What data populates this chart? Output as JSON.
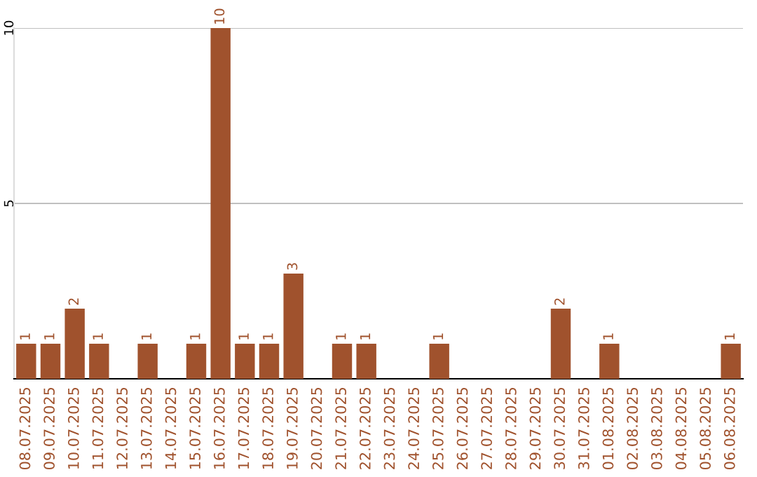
{
  "chart_data": {
    "type": "bar",
    "categories": [
      "08.07.2025",
      "09.07.2025",
      "10.07.2025",
      "11.07.2025",
      "12.07.2025",
      "13.07.2025",
      "14.07.2025",
      "15.07.2025",
      "16.07.2025",
      "17.07.2025",
      "18.07.2025",
      "19.07.2025",
      "20.07.2025",
      "21.07.2025",
      "22.07.2025",
      "23.07.2025",
      "24.07.2025",
      "25.07.2025",
      "26.07.2025",
      "27.07.2025",
      "28.07.2025",
      "29.07.2025",
      "30.07.2025",
      "31.07.2025",
      "01.08.2025",
      "02.08.2025",
      "03.08.2025",
      "04.08.2025",
      "05.08.2025",
      "06.08.2025"
    ],
    "values": [
      1,
      1,
      2,
      1,
      0,
      1,
      0,
      1,
      10,
      1,
      1,
      3,
      0,
      1,
      1,
      0,
      0,
      1,
      0,
      0,
      0,
      0,
      2,
      0,
      1,
      0,
      0,
      0,
      0,
      1
    ],
    "value_labels": [
      "1",
      "1",
      "2",
      "1",
      null,
      "1",
      null,
      "1",
      "10",
      "1",
      "1",
      "3",
      null,
      "1",
      "1",
      null,
      null,
      "1",
      null,
      null,
      null,
      null,
      "2",
      null,
      "1",
      null,
      null,
      null,
      null,
      "1"
    ],
    "color": "#a0522d",
    "ylim": [
      0,
      10
    ],
    "yticks": [
      5,
      10
    ],
    "grid": "y",
    "legend": false
  }
}
